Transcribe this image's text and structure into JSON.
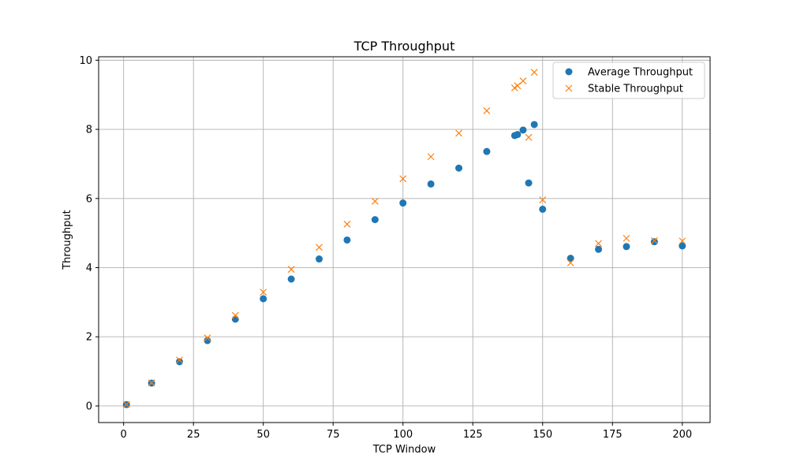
{
  "chart_data": {
    "type": "scatter",
    "title": "TCP Throughput",
    "xlabel": "TCP Window",
    "ylabel": "Throughput",
    "xlim": [
      -8.95,
      209.95
    ],
    "ylim": [
      -0.48,
      10.1
    ],
    "xticks": [
      0,
      25,
      50,
      75,
      100,
      125,
      150,
      175,
      200
    ],
    "yticks": [
      0,
      2,
      4,
      6,
      8,
      10
    ],
    "grid": true,
    "legend_position": "top-right",
    "series": [
      {
        "name": "Average Throughput",
        "marker": "circle",
        "color": "#1f77b4",
        "points": [
          [
            1,
            0.04
          ],
          [
            10,
            0.66
          ],
          [
            20,
            1.28
          ],
          [
            30,
            1.89
          ],
          [
            40,
            2.51
          ],
          [
            50,
            3.1
          ],
          [
            60,
            3.67
          ],
          [
            70,
            4.25
          ],
          [
            80,
            4.8
          ],
          [
            90,
            5.39
          ],
          [
            100,
            5.87
          ],
          [
            110,
            6.42
          ],
          [
            120,
            6.88
          ],
          [
            130,
            7.36
          ],
          [
            140,
            7.82
          ],
          [
            141,
            7.85
          ],
          [
            143,
            7.98
          ],
          [
            145,
            6.45
          ],
          [
            147,
            8.14
          ],
          [
            150,
            5.69
          ],
          [
            160,
            4.27
          ],
          [
            170,
            4.53
          ],
          [
            180,
            4.61
          ],
          [
            190,
            4.75
          ],
          [
            200,
            4.63
          ]
        ]
      },
      {
        "name": "Stable Throughput",
        "marker": "x",
        "color": "#ff7f0e",
        "points": [
          [
            1,
            0.04
          ],
          [
            10,
            0.67
          ],
          [
            20,
            1.33
          ],
          [
            30,
            1.97
          ],
          [
            40,
            2.62
          ],
          [
            50,
            3.29
          ],
          [
            60,
            3.95
          ],
          [
            70,
            4.59
          ],
          [
            80,
            5.26
          ],
          [
            90,
            5.92
          ],
          [
            100,
            6.57
          ],
          [
            110,
            7.21
          ],
          [
            120,
            7.89
          ],
          [
            130,
            8.54
          ],
          [
            140,
            9.2
          ],
          [
            141,
            9.26
          ],
          [
            143,
            9.4
          ],
          [
            145,
            7.77
          ],
          [
            147,
            9.65
          ],
          [
            150,
            5.96
          ],
          [
            160,
            4.14
          ],
          [
            170,
            4.7
          ],
          [
            180,
            4.85
          ],
          [
            190,
            4.78
          ],
          [
            200,
            4.77
          ]
        ]
      }
    ]
  }
}
